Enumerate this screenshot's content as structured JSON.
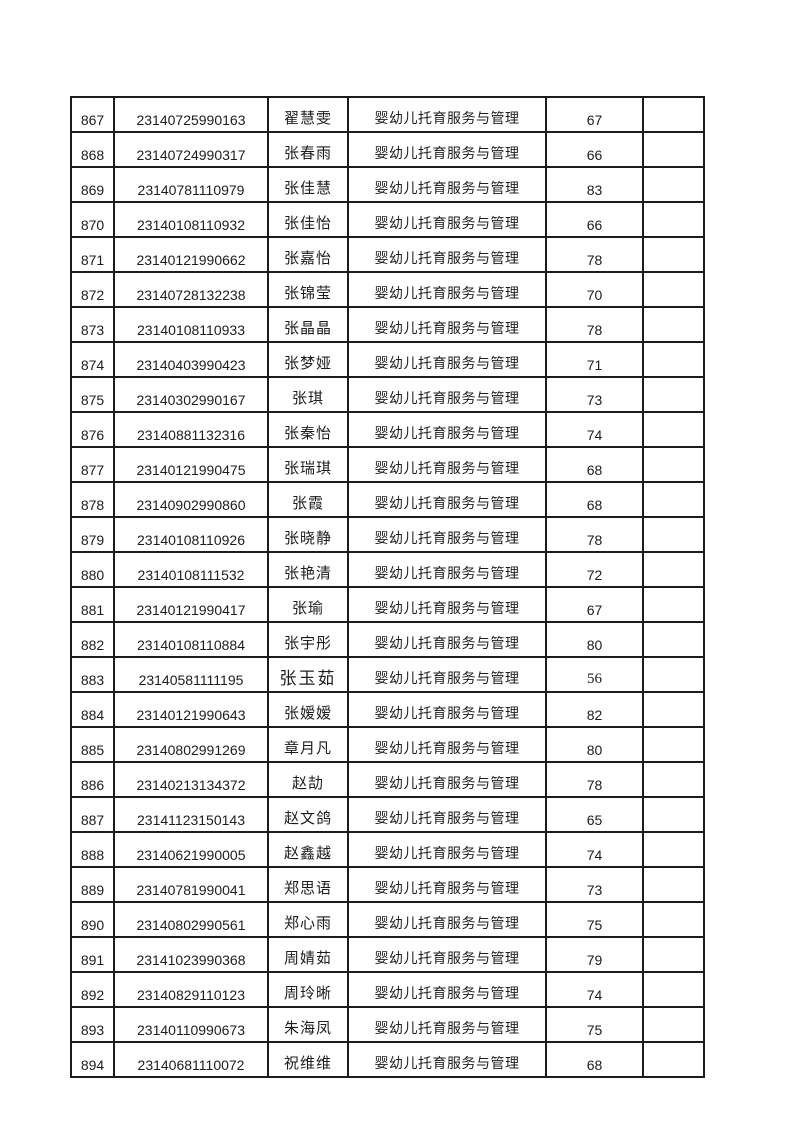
{
  "page": {
    "background": "#ffffff",
    "text_color": "#1d1d1d",
    "border_color": "#1c1c1c"
  },
  "table": {
    "rows": [
      {
        "no": "867",
        "id": "23140725990163",
        "name": "翟慧雯",
        "program": "婴幼儿托育服务与管理",
        "score": "67",
        "extra": ""
      },
      {
        "no": "868",
        "id": "23140724990317",
        "name": "张春雨",
        "program": "婴幼儿托育服务与管理",
        "score": "66",
        "extra": ""
      },
      {
        "no": "869",
        "id": "23140781110979",
        "name": "张佳慧",
        "program": "婴幼儿托育服务与管理",
        "score": "83",
        "extra": ""
      },
      {
        "no": "870",
        "id": "23140108110932",
        "name": "张佳怡",
        "program": "婴幼儿托育服务与管理",
        "score": "66",
        "extra": ""
      },
      {
        "no": "871",
        "id": "23140121990662",
        "name": "张嘉怡",
        "program": "婴幼儿托育服务与管理",
        "score": "78",
        "extra": ""
      },
      {
        "no": "872",
        "id": "23140728132238",
        "name": "张锦莹",
        "program": "婴幼儿托育服务与管理",
        "score": "70",
        "extra": ""
      },
      {
        "no": "873",
        "id": "23140108110933",
        "name": "张晶晶",
        "program": "婴幼儿托育服务与管理",
        "score": "78",
        "extra": ""
      },
      {
        "no": "874",
        "id": "23140403990423",
        "name": "张梦娅",
        "program": "婴幼儿托育服务与管理",
        "score": "71",
        "extra": ""
      },
      {
        "no": "875",
        "id": "23140302990167",
        "name": "张琪",
        "program": "婴幼儿托育服务与管理",
        "score": "73",
        "extra": ""
      },
      {
        "no": "876",
        "id": "23140881132316",
        "name": "张秦怡",
        "program": "婴幼儿托育服务与管理",
        "score": "74",
        "extra": ""
      },
      {
        "no": "877",
        "id": "23140121990475",
        "name": "张瑞琪",
        "program": "婴幼儿托育服务与管理",
        "score": "68",
        "extra": ""
      },
      {
        "no": "878",
        "id": "23140902990860",
        "name": "张霞",
        "program": "婴幼儿托育服务与管理",
        "score": "68",
        "extra": ""
      },
      {
        "no": "879",
        "id": "23140108110926",
        "name": "张晓静",
        "program": "婴幼儿托育服务与管理",
        "score": "78",
        "extra": ""
      },
      {
        "no": "880",
        "id": "23140108111532",
        "name": "张艳清",
        "program": "婴幼儿托育服务与管理",
        "score": "72",
        "extra": ""
      },
      {
        "no": "881",
        "id": "23140121990417",
        "name": "张瑜",
        "program": "婴幼儿托育服务与管理",
        "score": "67",
        "extra": ""
      },
      {
        "no": "882",
        "id": "23140108110884",
        "name": "张宇彤",
        "program": "婴幼儿托育服务与管理",
        "score": "80",
        "extra": ""
      },
      {
        "no": "883",
        "id": "23140581111195",
        "name": "张玉茹",
        "program": "婴幼儿托育服务与管理",
        "score": "56",
        "extra": "",
        "variant": "serif-top"
      },
      {
        "no": "884",
        "id": "23140121990643",
        "name": "张嫒嫒",
        "program": "婴幼儿托育服务与管理",
        "score": "82",
        "extra": ""
      },
      {
        "no": "885",
        "id": "23140802991269",
        "name": "章月凡",
        "program": "婴幼儿托育服务与管理",
        "score": "80",
        "extra": ""
      },
      {
        "no": "886",
        "id": "23140213134372",
        "name": "赵劼",
        "program": "婴幼儿托育服务与管理",
        "score": "78",
        "extra": ""
      },
      {
        "no": "887",
        "id": "23141123150143",
        "name": "赵文鸽",
        "program": "婴幼儿托育服务与管理",
        "score": "65",
        "extra": ""
      },
      {
        "no": "888",
        "id": "23140621990005",
        "name": "赵鑫越",
        "program": "婴幼儿托育服务与管理",
        "score": "74",
        "extra": ""
      },
      {
        "no": "889",
        "id": "23140781990041",
        "name": "郑思语",
        "program": "婴幼儿托育服务与管理",
        "score": "73",
        "extra": ""
      },
      {
        "no": "890",
        "id": "23140802990561",
        "name": "郑心雨",
        "program": "婴幼儿托育服务与管理",
        "score": "75",
        "extra": ""
      },
      {
        "no": "891",
        "id": "23141023990368",
        "name": "周婧茹",
        "program": "婴幼儿托育服务与管理",
        "score": "79",
        "extra": ""
      },
      {
        "no": "892",
        "id": "23140829110123",
        "name": "周玲晰",
        "program": "婴幼儿托育服务与管理",
        "score": "74",
        "extra": ""
      },
      {
        "no": "893",
        "id": "23140110990673",
        "name": "朱海凤",
        "program": "婴幼儿托育服务与管理",
        "score": "75",
        "extra": ""
      },
      {
        "no": "894",
        "id": "23140681110072",
        "name": "祝维维",
        "program": "婴幼儿托育服务与管理",
        "score": "68",
        "extra": ""
      }
    ]
  }
}
